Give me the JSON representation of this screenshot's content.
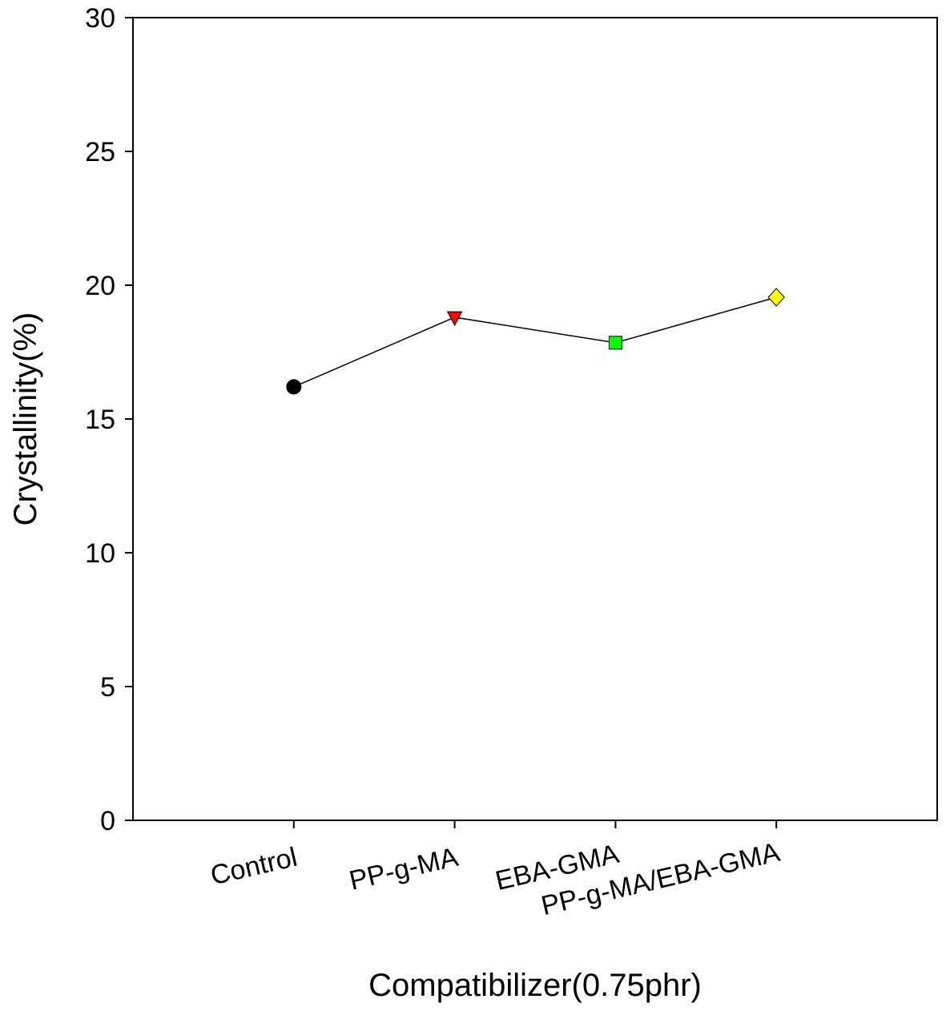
{
  "chart_data": {
    "type": "line",
    "title": "",
    "xlabel": "Compatibilizer(0.75phr)",
    "ylabel": "Crystallinity(%)",
    "ylim": [
      0,
      30
    ],
    "yticks": [
      0,
      5,
      10,
      15,
      20,
      25,
      30
    ],
    "categories": [
      "Control",
      "PP-g-MA",
      "EBA-GMA",
      "PP-g-MA/EBA-GMA"
    ],
    "grid": false,
    "series": [
      {
        "name": "Crystallinity",
        "values": [
          16.2,
          18.8,
          17.85,
          19.55
        ],
        "line_color": "#000000",
        "markers": [
          {
            "shape": "circle",
            "color": "#000000"
          },
          {
            "shape": "triangle-down",
            "color": "#ff0000"
          },
          {
            "shape": "square",
            "color": "#00ff00"
          },
          {
            "shape": "diamond",
            "color": "#ffff00"
          }
        ]
      }
    ]
  }
}
